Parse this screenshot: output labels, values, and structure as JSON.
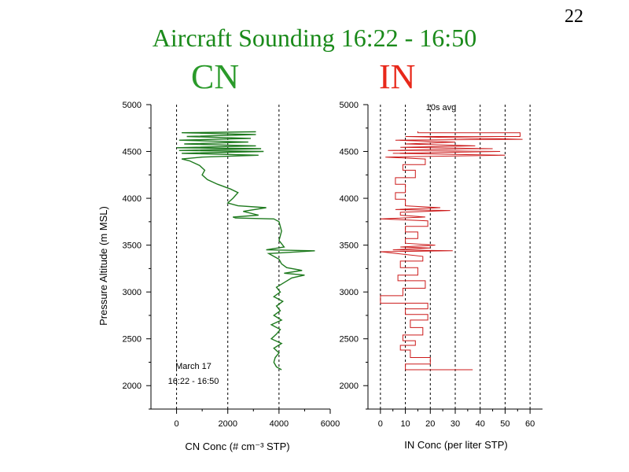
{
  "slide": {
    "number": "22",
    "title": "Aircraft Sounding 16:22 - 16:50",
    "label_cn": "CN",
    "label_in": "IN"
  },
  "colors": {
    "title": "#1a8a1a",
    "cn": "#1e7a1e",
    "in": "#cc1a1a"
  },
  "chart_data": [
    {
      "type": "line",
      "name": "CN profile",
      "xlabel": "CN Conc (# cm⁻³ STP)",
      "ylabel": "Pressure Altitude (m MSL)",
      "xlim": [
        -1000,
        6000
      ],
      "ylim": [
        1750,
        5000
      ],
      "xticks": [
        0,
        2000,
        4000,
        6000
      ],
      "xtick_labels": [
        "0",
        "2000",
        "4000",
        "6000"
      ],
      "yticks": [
        2000,
        2500,
        3000,
        3500,
        4000,
        4500,
        5000
      ],
      "ytick_labels": [
        "2000",
        "2500",
        "3000",
        "3500",
        "4000",
        "4500",
        "5000"
      ],
      "gridlines_x": [
        0,
        2000,
        4000
      ],
      "annotation": [
        "March 17",
        "16:22 - 16:50"
      ],
      "color": "#1e7a1e",
      "points": [
        [
          4100,
          2170
        ],
        [
          3900,
          2200
        ],
        [
          3800,
          2250
        ],
        [
          3850,
          2300
        ],
        [
          4000,
          2350
        ],
        [
          3800,
          2400
        ],
        [
          4100,
          2450
        ],
        [
          3700,
          2500
        ],
        [
          3900,
          2550
        ],
        [
          4050,
          2600
        ],
        [
          3700,
          2650
        ],
        [
          4100,
          2700
        ],
        [
          3800,
          2750
        ],
        [
          4050,
          2800
        ],
        [
          3900,
          2850
        ],
        [
          4150,
          2900
        ],
        [
          3800,
          2950
        ],
        [
          4050,
          3000
        ],
        [
          3900,
          3050
        ],
        [
          4200,
          3100
        ],
        [
          4500,
          3150
        ],
        [
          5000,
          3180
        ],
        [
          4200,
          3200
        ],
        [
          4900,
          3230
        ],
        [
          4300,
          3260
        ],
        [
          4100,
          3300
        ],
        [
          4000,
          3350
        ],
        [
          3800,
          3380
        ],
        [
          3600,
          3410
        ],
        [
          5400,
          3440
        ],
        [
          3500,
          3450
        ],
        [
          4200,
          3480
        ],
        [
          4000,
          3550
        ],
        [
          4100,
          3650
        ],
        [
          4000,
          3750
        ],
        [
          3800,
          3780
        ],
        [
          2300,
          3790
        ],
        [
          2200,
          3800
        ],
        [
          3200,
          3820
        ],
        [
          2600,
          3860
        ],
        [
          3500,
          3900
        ],
        [
          2400,
          3920
        ],
        [
          2000,
          3950
        ],
        [
          2200,
          4000
        ],
        [
          2400,
          4060
        ],
        [
          2100,
          4100
        ],
        [
          1600,
          4150
        ],
        [
          1200,
          4200
        ],
        [
          1000,
          4250
        ],
        [
          1100,
          4300
        ],
        [
          900,
          4350
        ],
        [
          500,
          4400
        ],
        [
          200,
          4420
        ],
        [
          1000,
          4440
        ],
        [
          3200,
          4460
        ],
        [
          200,
          4480
        ],
        [
          3400,
          4500
        ],
        [
          100,
          4510
        ],
        [
          3300,
          4530
        ],
        [
          0,
          4540
        ],
        [
          3100,
          4560
        ],
        [
          300,
          4580
        ],
        [
          2800,
          4600
        ],
        [
          100,
          4620
        ],
        [
          2900,
          4640
        ],
        [
          400,
          4660
        ],
        [
          3100,
          4680
        ],
        [
          200,
          4700
        ],
        [
          3100,
          4710
        ]
      ]
    },
    {
      "type": "line",
      "name": "IN profile",
      "xlabel": "IN Conc (per liter STP)",
      "ylabel": "",
      "xlim": [
        -5,
        65
      ],
      "ylim": [
        1750,
        5000
      ],
      "xticks": [
        0,
        10,
        20,
        30,
        40,
        50,
        60
      ],
      "xtick_labels": [
        "0",
        "10",
        "20",
        "30",
        "40",
        "50",
        "60"
      ],
      "yticks": [
        2000,
        2500,
        3000,
        3500,
        4000,
        4500,
        5000
      ],
      "ytick_labels": [
        "2000",
        "2500",
        "3000",
        "3500",
        "4000",
        "4500",
        "5000"
      ],
      "gridlines_x": [
        0,
        10,
        20,
        30,
        40,
        50,
        60
      ],
      "annotation": [
        "10s avg"
      ],
      "color": "#cc1a1a",
      "points": [
        [
          37,
          2170
        ],
        [
          10,
          2170
        ],
        [
          10,
          2230
        ],
        [
          20,
          2230
        ],
        [
          20,
          2300
        ],
        [
          12,
          2300
        ],
        [
          12,
          2380
        ],
        [
          8,
          2380
        ],
        [
          8,
          2430
        ],
        [
          14,
          2430
        ],
        [
          14,
          2480
        ],
        [
          9,
          2480
        ],
        [
          9,
          2540
        ],
        [
          17,
          2540
        ],
        [
          17,
          2620
        ],
        [
          12,
          2620
        ],
        [
          12,
          2700
        ],
        [
          19,
          2700
        ],
        [
          19,
          2760
        ],
        [
          10,
          2760
        ],
        [
          10,
          2820
        ],
        [
          19,
          2820
        ],
        [
          19,
          2880
        ],
        [
          0,
          2880
        ],
        [
          0,
          2960
        ],
        [
          9,
          2960
        ],
        [
          9,
          3040
        ],
        [
          18,
          3040
        ],
        [
          18,
          3120
        ],
        [
          7,
          3120
        ],
        [
          7,
          3180
        ],
        [
          15,
          3180
        ],
        [
          15,
          3260
        ],
        [
          8,
          3260
        ],
        [
          8,
          3330
        ],
        [
          17,
          3330
        ],
        [
          17,
          3380
        ],
        [
          0,
          3430
        ],
        [
          29,
          3440
        ],
        [
          5,
          3450
        ],
        [
          20,
          3470
        ],
        [
          8,
          3480
        ],
        [
          22,
          3500
        ],
        [
          10,
          3520
        ],
        [
          10,
          3570
        ],
        [
          15,
          3570
        ],
        [
          15,
          3640
        ],
        [
          10,
          3640
        ],
        [
          10,
          3700
        ],
        [
          19,
          3700
        ],
        [
          19,
          3760
        ],
        [
          0,
          3780
        ],
        [
          18,
          3800
        ],
        [
          8,
          3820
        ],
        [
          8,
          3850
        ],
        [
          28,
          3870
        ],
        [
          6,
          3880
        ],
        [
          24,
          3900
        ],
        [
          10,
          3920
        ],
        [
          10,
          3990
        ],
        [
          6,
          3990
        ],
        [
          6,
          4060
        ],
        [
          10,
          4060
        ],
        [
          10,
          4150
        ],
        [
          6,
          4150
        ],
        [
          6,
          4220
        ],
        [
          14,
          4220
        ],
        [
          14,
          4300
        ],
        [
          9,
          4300
        ],
        [
          9,
          4360
        ],
        [
          18,
          4360
        ],
        [
          18,
          4420
        ],
        [
          2,
          4440
        ],
        [
          50,
          4460
        ],
        [
          5,
          4480
        ],
        [
          48,
          4500
        ],
        [
          3,
          4510
        ],
        [
          45,
          4530
        ],
        [
          8,
          4545
        ],
        [
          38,
          4560
        ],
        [
          10,
          4580
        ],
        [
          30,
          4600
        ],
        [
          6,
          4620
        ],
        [
          57,
          4630
        ],
        [
          10,
          4660
        ],
        [
          56,
          4660
        ],
        [
          56,
          4700
        ],
        [
          15,
          4700
        ],
        [
          15,
          4715
        ]
      ]
    }
  ]
}
